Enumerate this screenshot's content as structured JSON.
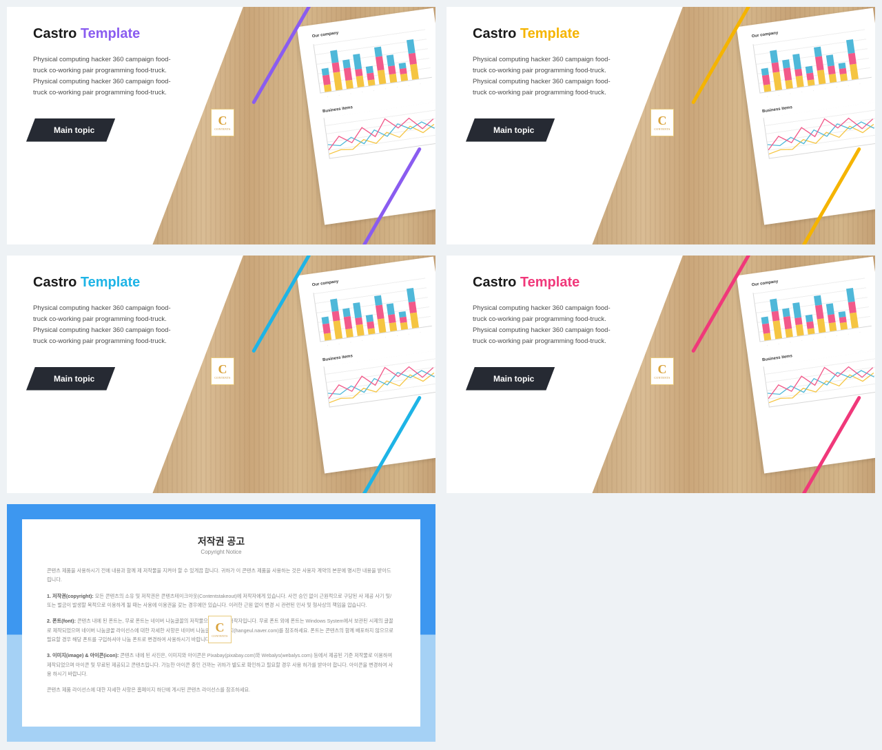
{
  "slides": [
    {
      "title_a": "Castro ",
      "title_b": "Template",
      "accent": "#8a5cf0",
      "desc": "Physical computing hacker 360 campaign food-truck co-working pair programming food-truck. Physical computing hacker 360 campaign food-truck co-working pair programming food-truck.",
      "btn": "Main topic"
    },
    {
      "title_a": "Castro ",
      "title_b": "Template",
      "accent": "#f5b400",
      "desc": "Physical computing hacker 360 campaign food-truck co-working pair programming food-truck. Physical computing hacker 360 campaign food-truck co-working pair programming food-truck.",
      "btn": "Main topic"
    },
    {
      "title_a": "Castro ",
      "title_b": "Template",
      "accent": "#1eb4e6",
      "desc": "Physical computing hacker 360 campaign food-truck co-working pair programming food-truck. Physical computing hacker 360 campaign food-truck co-working pair programming food-truck.",
      "btn": "Main topic"
    },
    {
      "title_a": "Castro ",
      "title_b": "Template",
      "accent": "#f0387a",
      "desc": "Physical computing hacker 360 campaign food-truck co-working pair programming food-truck. Physical computing hacker 360 campaign food-truck co-working pair programming food-truck.",
      "btn": "Main topic"
    }
  ],
  "badge": {
    "letter": "C",
    "sub": "CONTENTS"
  },
  "paper": {
    "title1": "Our company",
    "title2": "Business items",
    "colors": {
      "yellow": "#f5c542",
      "pink": "#f25a8a",
      "blue": "#4fb8d9"
    },
    "bars": [
      {
        "segs": [
          [
            "yellow",
            10
          ],
          [
            "pink",
            14
          ],
          [
            "blue",
            10
          ]
        ]
      },
      {
        "segs": [
          [
            "yellow",
            26
          ],
          [
            "pink",
            14
          ],
          [
            "blue",
            18
          ]
        ]
      },
      {
        "segs": [
          [
            "yellow",
            12
          ],
          [
            "pink",
            18
          ],
          [
            "blue",
            12
          ]
        ]
      },
      {
        "segs": [
          [
            "yellow",
            16
          ],
          [
            "pink",
            10
          ],
          [
            "blue",
            22
          ]
        ]
      },
      {
        "segs": [
          [
            "yellow",
            8
          ],
          [
            "pink",
            10
          ],
          [
            "blue",
            10
          ]
        ]
      },
      {
        "segs": [
          [
            "yellow",
            20
          ],
          [
            "pink",
            20
          ],
          [
            "blue",
            14
          ]
        ]
      },
      {
        "segs": [
          [
            "yellow",
            12
          ],
          [
            "pink",
            12
          ],
          [
            "blue",
            16
          ]
        ]
      },
      {
        "segs": [
          [
            "yellow",
            10
          ],
          [
            "pink",
            8
          ],
          [
            "blue",
            8
          ]
        ]
      },
      {
        "segs": [
          [
            "yellow",
            22
          ],
          [
            "pink",
            16
          ],
          [
            "blue",
            20
          ]
        ]
      }
    ],
    "lines": {
      "pink": [
        [
          0,
          48
        ],
        [
          16,
          30
        ],
        [
          32,
          42
        ],
        [
          48,
          22
        ],
        [
          64,
          38
        ],
        [
          80,
          14
        ],
        [
          96,
          30
        ],
        [
          112,
          18
        ],
        [
          128,
          36
        ],
        [
          144,
          24
        ]
      ],
      "blue": [
        [
          0,
          40
        ],
        [
          16,
          44
        ],
        [
          32,
          34
        ],
        [
          48,
          46
        ],
        [
          64,
          28
        ],
        [
          80,
          40
        ],
        [
          96,
          24
        ],
        [
          112,
          34
        ],
        [
          128,
          26
        ],
        [
          144,
          38
        ]
      ],
      "yellow": [
        [
          0,
          54
        ],
        [
          16,
          50
        ],
        [
          32,
          52
        ],
        [
          48,
          40
        ],
        [
          64,
          48
        ],
        [
          80,
          34
        ],
        [
          96,
          44
        ],
        [
          112,
          30
        ],
        [
          128,
          42
        ],
        [
          144,
          32
        ]
      ]
    }
  },
  "copyright": {
    "title": "저작권 공고",
    "subtitle": "Copyright Notice",
    "intro": "콘텐츠 제품을 사용하시기 전에 내용과 함께 제 저작물을 지켜야 할 수 있게끔 합니다. 귀하가 이 콘텐츠 제품을 사용하는 것은 사용자 계약의 본문에 명시한 내용을 받아드립니다.",
    "sections": [
      {
        "label": "1. 저작권(copyright):",
        "text": "모든 콘텐츠의 소유 및 저작권은 콘텐츠테이크아웃(Contentstakeout)에 저작자에게 있습니다. 사전 승인 없이 근원적으로 구당된 사 제공 사기 및/또는 벌금이 발생할 목적으로 이용하게 될 때는 사용에 이용권을 갖는 경우에만 있습니다. 이러한 근원 없이 변경 시 관련된 민사 및 형사상의 책임을 압습니다."
      },
      {
        "label": "2. 폰트(font):",
        "text": "콘텐츠 내에 된 폰트는, 무료 폰트는 네이버 나눔글꼴의 저작물으로 네이버 저작자입니다. 무료 폰트 외에 폰트는 Windows System에서 보관된 시제의 글꼴로 제작되었으며 네이버 나눔글꼴 라이선스에 대한 자세한 사항은 네이버 나눔글꼴 홈페이지(hangeul.naver.com)를 참조하세요. 폰트는 콘텐츠의 함께 배포하지 않으므로 필요할 경우 해당 폰트를 구입하셔야 나눔 폰트로 변경하여 사용하시기 바랍니다."
      },
      {
        "label": "3. 이미지(image) & 아이콘(icon):",
        "text": "콘텐츠 내에 된 사진은, 이미지와 아이콘은 Pixabay(pixabay.com)와 Webalys(webalys.com) 등에서 제공된 기준 저작물로 이용하여 제작되었으며 아이콘 및 무료된 제공되고 콘텐츠입니다. 가능한 아이콘 중인 건까는 귀하가 별도로 확인하고 필요할 경우 사용 허가를 받아야 합니다. 아이콘을 변경하여 사용 하시기 바랍니다."
      }
    ],
    "outro": "콘텐츠 제품 라이선스에 대한 자세한 사항은 홈페이지 하단에 게시된 콘텐츠 라이선스를 참조하세요."
  }
}
